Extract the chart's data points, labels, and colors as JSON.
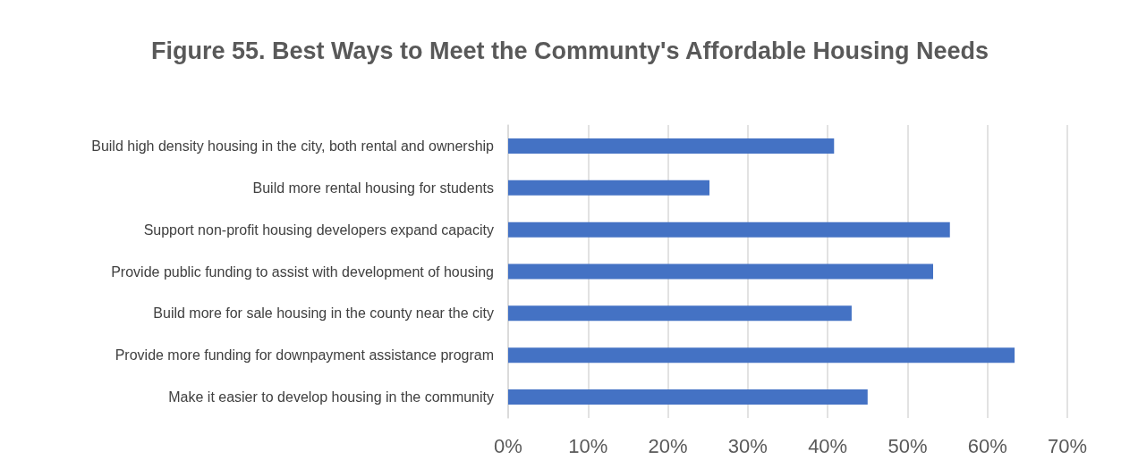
{
  "chart_data": {
    "type": "bar",
    "orientation": "horizontal",
    "title": "Figure 55. Best Ways to Meet the Communty's Affordable Housing Needs",
    "categories": [
      "Build high density housing in the city, both rental and ownership",
      "Build more rental housing for students",
      "Support non-profit housing developers expand capacity",
      "Provide public funding to assist with development of housing",
      "Build more for sale housing in the county near the city",
      "Provide more funding for downpayment assistance program",
      "Make it easier to develop housing in the community"
    ],
    "values": [
      40.8,
      25.2,
      55.3,
      53.2,
      43.0,
      63.4,
      45.0
    ],
    "color": "#4472c4",
    "xlim": [
      0,
      70
    ],
    "xticks": [
      {
        "value": 0,
        "label": "0%"
      },
      {
        "value": 10,
        "label": "10%"
      },
      {
        "value": 20,
        "label": "20%"
      },
      {
        "value": 30,
        "label": "30%"
      },
      {
        "value": 40,
        "label": "40%"
      },
      {
        "value": 50,
        "label": "50%"
      },
      {
        "value": 60,
        "label": "60%"
      },
      {
        "value": 70,
        "label": "70%"
      }
    ],
    "grid": "x"
  }
}
